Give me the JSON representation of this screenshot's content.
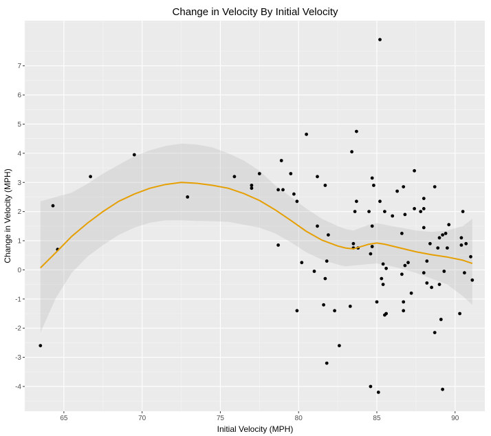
{
  "chart_data": {
    "type": "scatter",
    "title": "Change in Velocity By Initial Velocity",
    "xlabel": "Initial Velocity (MPH)",
    "ylabel": "Change in Velocity (MPH)",
    "xlim": [
      62.5,
      91.9
    ],
    "ylim": [
      -4.85,
      8.55
    ],
    "x_ticks": [
      65,
      70,
      75,
      80,
      85,
      90
    ],
    "y_ticks": [
      -4,
      -3,
      -2,
      -1,
      0,
      1,
      2,
      3,
      4,
      5,
      6,
      7
    ],
    "grid": true,
    "points": [
      {
        "x": 63.5,
        "y": -2.6
      },
      {
        "x": 64.3,
        "y": 2.2
      },
      {
        "x": 64.6,
        "y": 0.7
      },
      {
        "x": 66.7,
        "y": 3.2
      },
      {
        "x": 69.5,
        "y": 3.95
      },
      {
        "x": 72.9,
        "y": 2.5
      },
      {
        "x": 75.9,
        "y": 3.2
      },
      {
        "x": 77.0,
        "y": 2.8
      },
      {
        "x": 77.0,
        "y": 2.9
      },
      {
        "x": 77.5,
        "y": 3.3
      },
      {
        "x": 78.7,
        "y": 2.75
      },
      {
        "x": 78.7,
        "y": 0.85
      },
      {
        "x": 78.9,
        "y": 3.75
      },
      {
        "x": 79.0,
        "y": 2.75
      },
      {
        "x": 79.5,
        "y": 3.3
      },
      {
        "x": 79.7,
        "y": 2.6
      },
      {
        "x": 79.9,
        "y": 2.35
      },
      {
        "x": 79.9,
        "y": -1.4
      },
      {
        "x": 80.2,
        "y": 0.25
      },
      {
        "x": 80.5,
        "y": 4.65
      },
      {
        "x": 81.0,
        "y": -0.05
      },
      {
        "x": 81.2,
        "y": 3.2
      },
      {
        "x": 81.2,
        "y": 1.5
      },
      {
        "x": 81.6,
        "y": -1.2
      },
      {
        "x": 81.7,
        "y": 2.9
      },
      {
        "x": 81.7,
        "y": -0.3
      },
      {
        "x": 81.8,
        "y": 0.3
      },
      {
        "x": 81.8,
        "y": -3.2
      },
      {
        "x": 81.9,
        "y": 1.2
      },
      {
        "x": 82.3,
        "y": -1.4
      },
      {
        "x": 82.6,
        "y": -2.6
      },
      {
        "x": 83.3,
        "y": -1.25
      },
      {
        "x": 83.4,
        "y": 4.05
      },
      {
        "x": 83.5,
        "y": 0.9
      },
      {
        "x": 83.5,
        "y": 0.75
      },
      {
        "x": 83.6,
        "y": 2.0
      },
      {
        "x": 83.7,
        "y": 4.75
      },
      {
        "x": 83.7,
        "y": 2.35
      },
      {
        "x": 83.8,
        "y": 0.75
      },
      {
        "x": 84.5,
        "y": 2.0
      },
      {
        "x": 84.6,
        "y": 0.55
      },
      {
        "x": 84.6,
        "y": -4.0
      },
      {
        "x": 84.7,
        "y": 3.15
      },
      {
        "x": 84.7,
        "y": 1.5
      },
      {
        "x": 84.7,
        "y": 0.8
      },
      {
        "x": 84.8,
        "y": 2.9
      },
      {
        "x": 85.0,
        "y": -1.1
      },
      {
        "x": 85.1,
        "y": -4.2
      },
      {
        "x": 85.2,
        "y": 7.9
      },
      {
        "x": 85.2,
        "y": 2.35
      },
      {
        "x": 85.3,
        "y": -0.3
      },
      {
        "x": 85.4,
        "y": 0.2
      },
      {
        "x": 85.4,
        "y": -0.5
      },
      {
        "x": 85.5,
        "y": 2.0
      },
      {
        "x": 85.5,
        "y": -1.55
      },
      {
        "x": 85.6,
        "y": -1.5
      },
      {
        "x": 85.6,
        "y": 0.05
      },
      {
        "x": 86.0,
        "y": 1.85
      },
      {
        "x": 86.3,
        "y": 2.7
      },
      {
        "x": 86.6,
        "y": 1.25
      },
      {
        "x": 86.6,
        "y": -0.15
      },
      {
        "x": 86.7,
        "y": 2.85
      },
      {
        "x": 86.7,
        "y": -1.4
      },
      {
        "x": 86.7,
        "y": -1.1
      },
      {
        "x": 86.8,
        "y": 1.9
      },
      {
        "x": 86.8,
        "y": 0.15
      },
      {
        "x": 87.0,
        "y": 0.25
      },
      {
        "x": 87.2,
        "y": -0.8
      },
      {
        "x": 87.4,
        "y": 3.4
      },
      {
        "x": 87.4,
        "y": 2.1
      },
      {
        "x": 87.8,
        "y": 2.0
      },
      {
        "x": 88.0,
        "y": 2.45
      },
      {
        "x": 88.0,
        "y": 2.1
      },
      {
        "x": 88.0,
        "y": 1.45
      },
      {
        "x": 88.0,
        "y": -0.1
      },
      {
        "x": 88.2,
        "y": 0.3
      },
      {
        "x": 88.2,
        "y": -0.45
      },
      {
        "x": 88.4,
        "y": 0.9
      },
      {
        "x": 88.5,
        "y": -0.6
      },
      {
        "x": 88.7,
        "y": 2.85
      },
      {
        "x": 88.7,
        "y": -2.15
      },
      {
        "x": 88.9,
        "y": 0.75
      },
      {
        "x": 89.0,
        "y": 1.1
      },
      {
        "x": 89.0,
        "y": -0.5
      },
      {
        "x": 89.1,
        "y": -1.7
      },
      {
        "x": 89.2,
        "y": 1.2
      },
      {
        "x": 89.2,
        "y": -4.1
      },
      {
        "x": 89.3,
        "y": -0.05
      },
      {
        "x": 89.4,
        "y": 1.25
      },
      {
        "x": 89.5,
        "y": 0.75
      },
      {
        "x": 89.6,
        "y": 1.55
      },
      {
        "x": 90.3,
        "y": -1.5
      },
      {
        "x": 90.4,
        "y": 1.1
      },
      {
        "x": 90.4,
        "y": 0.85
      },
      {
        "x": 90.5,
        "y": 2.0
      },
      {
        "x": 90.6,
        "y": -0.1
      },
      {
        "x": 90.7,
        "y": 0.9
      },
      {
        "x": 91.0,
        "y": 0.45
      },
      {
        "x": 91.1,
        "y": -0.35
      }
    ],
    "smooth": {
      "x": [
        63.5,
        64.5,
        65.5,
        66.5,
        67.5,
        68.5,
        69.5,
        70.5,
        71.5,
        72.5,
        73.5,
        74.5,
        75.5,
        76.5,
        77.5,
        78.5,
        79.5,
        80.5,
        81.5,
        82.5,
        83.0,
        83.5,
        84.5,
        85.0,
        85.5,
        86.5,
        87.5,
        88.5,
        89.5,
        90.5,
        91.1
      ],
      "y": [
        0.07,
        0.6,
        1.15,
        1.6,
        2.0,
        2.35,
        2.6,
        2.8,
        2.93,
        3.0,
        2.97,
        2.9,
        2.8,
        2.62,
        2.38,
        2.06,
        1.7,
        1.32,
        1.02,
        0.82,
        0.75,
        0.72,
        0.88,
        0.92,
        0.88,
        0.75,
        0.62,
        0.52,
        0.44,
        0.33,
        0.22
      ],
      "lower": [
        -2.15,
        -0.95,
        -0.1,
        0.45,
        0.85,
        1.2,
        1.45,
        1.62,
        1.7,
        1.7,
        1.68,
        1.67,
        1.65,
        1.55,
        1.45,
        1.25,
        0.95,
        0.6,
        0.35,
        0.18,
        0.12,
        0.15,
        0.2,
        0.22,
        0.18,
        0.05,
        -0.1,
        -0.3,
        -0.5,
        -0.9,
        -1.2
      ],
      "upper": [
        2.35,
        2.5,
        2.65,
        2.95,
        3.3,
        3.6,
        3.9,
        4.1,
        4.25,
        4.33,
        4.3,
        4.2,
        4.0,
        3.75,
        3.4,
        2.9,
        2.5,
        2.1,
        1.75,
        1.5,
        1.4,
        1.35,
        1.55,
        1.6,
        1.55,
        1.45,
        1.35,
        1.3,
        1.35,
        1.5,
        1.75
      ]
    },
    "colors": {
      "panel": "#ebebeb",
      "grid_major": "#ffffff",
      "grid_minor": "#f5f5f5",
      "point": "#000000",
      "line": "#e69f00",
      "ribbon": "#999999"
    }
  }
}
